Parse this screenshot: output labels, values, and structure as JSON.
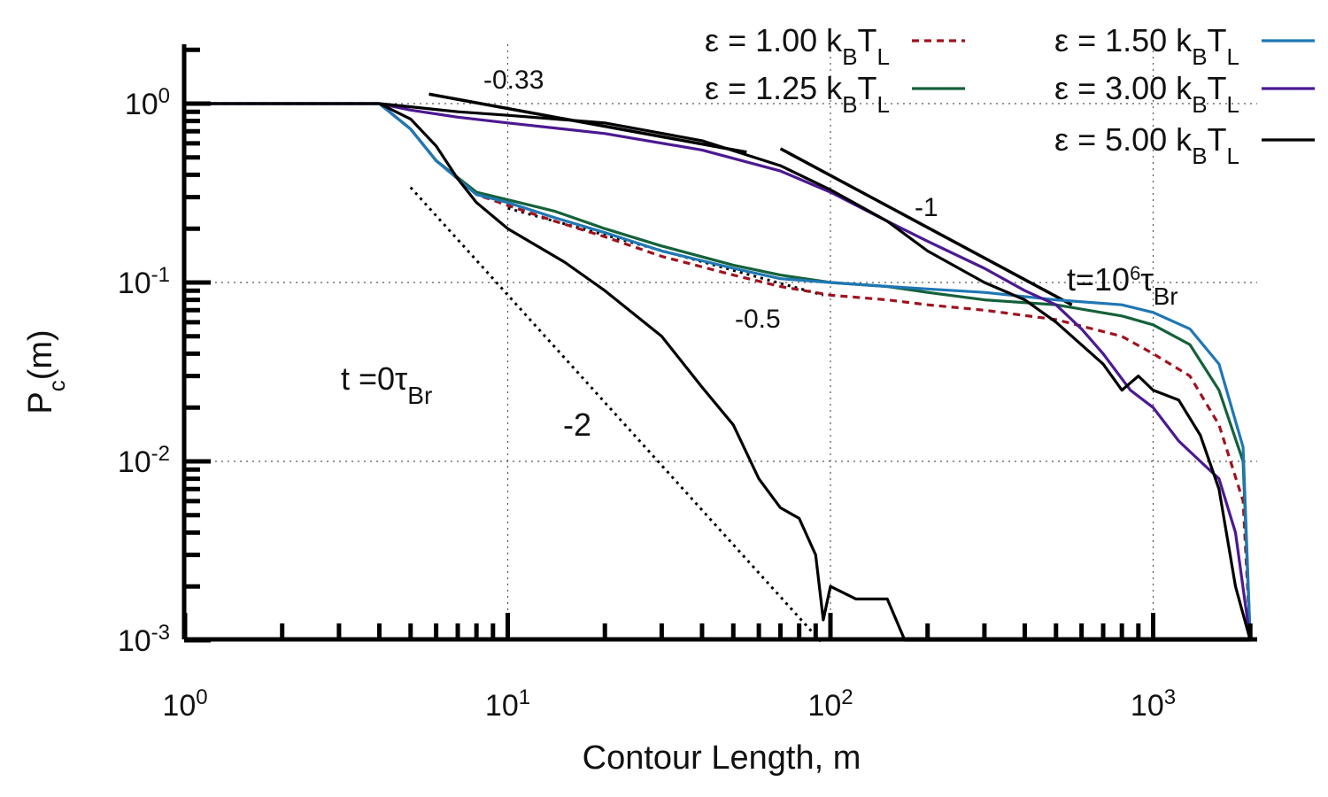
{
  "chart_data": {
    "type": "line",
    "scale": {
      "x": "log",
      "y": "log"
    },
    "xlabel": "Contour Length, m",
    "ylabel": "P",
    "ylabel_sub": "c",
    "ylabel_suffix": "(m)",
    "xlim": [
      1,
      2000
    ],
    "ylim": [
      0.001,
      2
    ],
    "grid": "dotted at decades",
    "x_ticks": [
      {
        "value": 1,
        "base": "10",
        "exp": "0"
      },
      {
        "value": 10,
        "base": "10",
        "exp": "1"
      },
      {
        "value": 100,
        "base": "10",
        "exp": "2"
      },
      {
        "value": 1000,
        "base": "10",
        "exp": "3"
      }
    ],
    "y_ticks": [
      {
        "value": 1,
        "base": "10",
        "exp": "0"
      },
      {
        "value": 0.1,
        "base": "10",
        "exp": "-1"
      },
      {
        "value": 0.01,
        "base": "10",
        "exp": "-2"
      },
      {
        "value": 0.001,
        "base": "10",
        "exp": "-3"
      }
    ],
    "legend_placement": "top-right",
    "series": [
      {
        "name": "ε = 1.00 k_BT_L",
        "color": "#a0121e",
        "dash": "8,6",
        "points": [
          [
            1,
            1
          ],
          [
            4,
            1
          ],
          [
            5,
            0.72
          ],
          [
            6,
            0.48
          ],
          [
            8,
            0.31
          ],
          [
            10,
            0.27
          ],
          [
            14,
            0.22
          ],
          [
            20,
            0.18
          ],
          [
            30,
            0.14
          ],
          [
            50,
            0.11
          ],
          [
            70,
            0.095
          ],
          [
            100,
            0.085
          ],
          [
            150,
            0.08
          ],
          [
            200,
            0.075
          ],
          [
            300,
            0.07
          ],
          [
            500,
            0.062
          ],
          [
            800,
            0.05
          ],
          [
            1000,
            0.04
          ],
          [
            1300,
            0.03
          ],
          [
            1600,
            0.016
          ],
          [
            1900,
            0.006
          ],
          [
            2000,
            0.001
          ]
        ]
      },
      {
        "name": "ε = 1.25 k_BT_L",
        "color": "#14613a",
        "dash": "",
        "points": [
          [
            1,
            1
          ],
          [
            4,
            1
          ],
          [
            5,
            0.72
          ],
          [
            6,
            0.48
          ],
          [
            8,
            0.32
          ],
          [
            10,
            0.29
          ],
          [
            14,
            0.25
          ],
          [
            20,
            0.2
          ],
          [
            30,
            0.16
          ],
          [
            50,
            0.125
          ],
          [
            70,
            0.11
          ],
          [
            100,
            0.1
          ],
          [
            150,
            0.095
          ],
          [
            200,
            0.088
          ],
          [
            300,
            0.08
          ],
          [
            500,
            0.075
          ],
          [
            800,
            0.065
          ],
          [
            1000,
            0.058
          ],
          [
            1300,
            0.045
          ],
          [
            1600,
            0.025
          ],
          [
            1900,
            0.01
          ],
          [
            2000,
            0.001
          ]
        ]
      },
      {
        "name": "ε = 1.50 k_BT_L",
        "color": "#1f77b4",
        "dash": "",
        "points": [
          [
            1,
            1
          ],
          [
            4,
            1
          ],
          [
            5,
            0.72
          ],
          [
            6,
            0.48
          ],
          [
            8,
            0.31
          ],
          [
            10,
            0.28
          ],
          [
            14,
            0.23
          ],
          [
            20,
            0.19
          ],
          [
            30,
            0.15
          ],
          [
            50,
            0.12
          ],
          [
            70,
            0.105
          ],
          [
            100,
            0.1
          ],
          [
            150,
            0.095
          ],
          [
            200,
            0.092
          ],
          [
            300,
            0.088
          ],
          [
            500,
            0.08
          ],
          [
            800,
            0.075
          ],
          [
            1000,
            0.068
          ],
          [
            1300,
            0.055
          ],
          [
            1600,
            0.035
          ],
          [
            1900,
            0.012
          ],
          [
            2000,
            0.001
          ]
        ]
      },
      {
        "name": "ε = 3.00 k_BT_L",
        "color": "#4b1991",
        "dash": "",
        "points": [
          [
            1,
            1
          ],
          [
            4,
            1
          ],
          [
            5,
            0.92
          ],
          [
            7,
            0.84
          ],
          [
            10,
            0.78
          ],
          [
            20,
            0.68
          ],
          [
            40,
            0.55
          ],
          [
            70,
            0.42
          ],
          [
            100,
            0.32
          ],
          [
            150,
            0.22
          ],
          [
            200,
            0.17
          ],
          [
            300,
            0.12
          ],
          [
            400,
            0.09
          ],
          [
            500,
            0.075
          ],
          [
            600,
            0.055
          ],
          [
            700,
            0.04
          ],
          [
            850,
            0.025
          ],
          [
            1000,
            0.02
          ],
          [
            1200,
            0.013
          ],
          [
            1400,
            0.01
          ],
          [
            1600,
            0.008
          ],
          [
            1800,
            0.004
          ],
          [
            2000,
            0.001
          ]
        ]
      },
      {
        "name": "ε = 5.00 k_BT_L",
        "color": "#000000",
        "dash": "",
        "points": [
          [
            1,
            1
          ],
          [
            4,
            1
          ],
          [
            5,
            0.96
          ],
          [
            7,
            0.9
          ],
          [
            10,
            0.86
          ],
          [
            20,
            0.78
          ],
          [
            40,
            0.62
          ],
          [
            70,
            0.45
          ],
          [
            100,
            0.33
          ],
          [
            150,
            0.22
          ],
          [
            200,
            0.15
          ],
          [
            300,
            0.1
          ],
          [
            400,
            0.08
          ],
          [
            500,
            0.06
          ],
          [
            700,
            0.035
          ],
          [
            800,
            0.025
          ],
          [
            900,
            0.03
          ],
          [
            1000,
            0.025
          ],
          [
            1200,
            0.022
          ],
          [
            1400,
            0.014
          ],
          [
            1600,
            0.007
          ],
          [
            1800,
            0.002
          ],
          [
            2000,
            0.001
          ]
        ]
      },
      {
        "name": "",
        "color": "#000000",
        "dash": "",
        "points": [
          [
            4,
            1
          ],
          [
            5,
            0.82
          ],
          [
            6,
            0.58
          ],
          [
            7,
            0.38
          ],
          [
            8,
            0.28
          ],
          [
            10,
            0.2
          ],
          [
            15,
            0.13
          ],
          [
            20,
            0.09
          ],
          [
            30,
            0.05
          ],
          [
            40,
            0.026
          ],
          [
            50,
            0.016
          ],
          [
            60,
            0.008
          ],
          [
            70,
            0.0055
          ],
          [
            80,
            0.0048
          ],
          [
            90,
            0.003
          ],
          [
            95,
            0.0013
          ],
          [
            100,
            0.002
          ],
          [
            120,
            0.0017
          ],
          [
            150,
            0.0017
          ],
          [
            170,
            0.001
          ],
          [
            2000,
            0.001
          ]
        ]
      }
    ],
    "reference_lines": [
      {
        "label": "-0.33",
        "points": [
          [
            5.7,
            1.13
          ],
          [
            55,
            0.535
          ]
        ],
        "style": "solid"
      },
      {
        "label": "-1",
        "points": [
          [
            70,
            0.56
          ],
          [
            560,
            0.075
          ]
        ],
        "style": "solid"
      },
      {
        "label": "-0.5",
        "points": [
          [
            10,
            0.26
          ],
          [
            95,
            0.085
          ]
        ],
        "style": "dotted"
      },
      {
        "label": "-2",
        "points": [
          [
            5,
            0.34
          ],
          [
            95,
            0.00095
          ]
        ],
        "style": "dotted"
      }
    ],
    "annotations": {
      "slope_033": "-0.33",
      "slope_1": "-1",
      "slope_05": "-0.5",
      "slope_2": "-2",
      "time0": "t =0τ",
      "time0_sub": "Br",
      "time6_pre": "t=10",
      "time6_exp": "6",
      "time6_tau": "τ",
      "time6_sub": "Br"
    },
    "legend": [
      {
        "eps": "ε = 1.00 k",
        "sub1": "B",
        "mid": "T",
        "sub2": "L",
        "color": "#a0121e",
        "dash": "8,6"
      },
      {
        "eps": "ε = 1.25 k",
        "sub1": "B",
        "mid": "T",
        "sub2": "L",
        "color": "#14613a",
        "dash": ""
      },
      {
        "eps": "ε = 1.50 k",
        "sub1": "B",
        "mid": "T",
        "sub2": "L",
        "color": "#1f77b4",
        "dash": ""
      },
      {
        "eps": "ε = 3.00 k",
        "sub1": "B",
        "mid": "T",
        "sub2": "L",
        "color": "#4b1991",
        "dash": ""
      },
      {
        "eps": "ε = 5.00 k",
        "sub1": "B",
        "mid": "T",
        "sub2": "L",
        "color": "#000000",
        "dash": ""
      }
    ]
  }
}
